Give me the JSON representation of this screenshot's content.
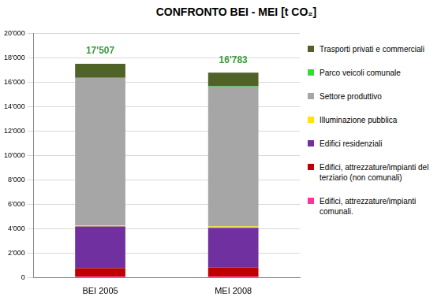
{
  "chart_data": {
    "type": "bar",
    "title": "CONFRONTO BEI - MEI [t CO₂]",
    "categories": [
      "BEI 2005",
      "MEI 2008"
    ],
    "series": [
      {
        "name": "Edifici, attrezzature/impianti comunali.",
        "color": "#ff3399",
        "values": [
          100,
          100
        ]
      },
      {
        "name": "Edifici, attrezzature/impianti del terziario (non comunali)",
        "color": "#c00000",
        "values": [
          700,
          750
        ]
      },
      {
        "name": "Edifici residenziali",
        "color": "#7030a0",
        "values": [
          3400,
          3250
        ]
      },
      {
        "name": "Illuminazione pubblica",
        "color": "#ffe600",
        "values": [
          100,
          100
        ]
      },
      {
        "name": "Settore produttivo",
        "color": "#a6a6a6",
        "values": [
          12050,
          11450
        ]
      },
      {
        "name": "Parco veicoli comunale",
        "color": "#33dd33",
        "values": [
          20,
          20
        ]
      },
      {
        "name": "Trasporti privati e commerciali",
        "color": "#4f6228",
        "values": [
          1137,
          1113
        ]
      }
    ],
    "totals": [
      17507,
      16783
    ],
    "total_labels": [
      "17'507",
      "16'783"
    ],
    "stacked": true,
    "ylim": [
      0,
      20000
    ],
    "yticks": [
      0,
      {
        "value": 2000,
        "label": "2'000"
      },
      {
        "value": 4000,
        "label": "4'000"
      },
      {
        "value": 6000,
        "label": "6'000"
      },
      {
        "value": 8000,
        "label": "8'000"
      },
      {
        "value": 10000,
        "label": "10'000"
      },
      {
        "value": 12000,
        "label": "12'000"
      },
      {
        "value": 14000,
        "label": "14'000"
      },
      {
        "value": 16000,
        "label": "16'000"
      },
      {
        "value": 18000,
        "label": "18'000"
      },
      {
        "value": 20000,
        "label": "20'000"
      }
    ],
    "grid": true,
    "legend": "right"
  }
}
